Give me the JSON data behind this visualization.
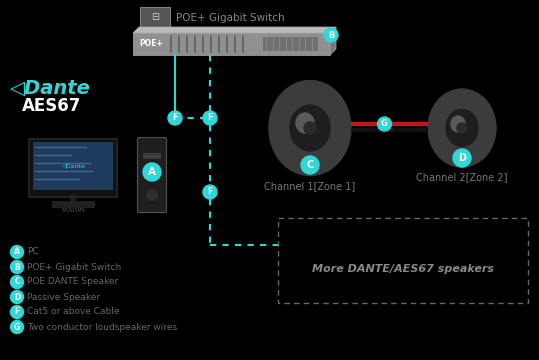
{
  "bg_color": "#000000",
  "cyan": "#2ed8d8",
  "dark_gray": "#404040",
  "mid_gray": "#606060",
  "light_gray": "#888888",
  "red": "#cc1111",
  "white": "#ffffff",
  "off_white": "#cccccc",
  "switch_body_color": "#999999",
  "switch_dark": "#777777",
  "speaker_body": "#3d3d3d",
  "speaker_cone": "#232323",
  "speaker_highlight": "#5a5a5a",
  "tower_color": "#2d2d2d",
  "monitor_bg": "#1a2a3a",
  "legend": [
    {
      "label": "A",
      "text": "PC"
    },
    {
      "label": "B",
      "text": "POE+ Gigabit Switch"
    },
    {
      "label": "C",
      "text": "POE DANTE Speaker"
    },
    {
      "label": "D",
      "text": "Passive Speaker"
    },
    {
      "label": "F",
      "text": "Cat5 or above Cable"
    },
    {
      "label": "G",
      "text": "Two conductor loudspeaker wires"
    }
  ],
  "channel1_label": "Channel 1[Zone 1]",
  "channel2_label": "Channel 2[Zone 2]",
  "more_speakers_label": "More DANTE/AES67 speakers",
  "poe_label": "POE+",
  "switch_label": "POE+ Gigabit Switch"
}
